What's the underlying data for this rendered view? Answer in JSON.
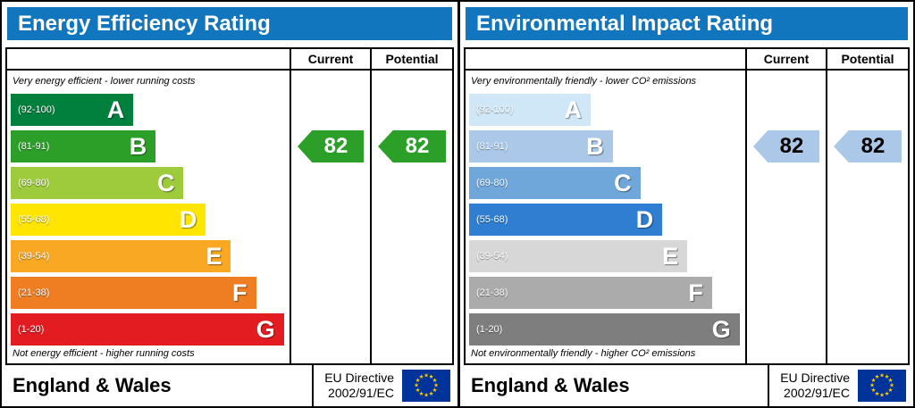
{
  "colors": {
    "header_bg": "#1176bd",
    "header_text": "#ffffff",
    "eu_flag_bg": "#003399",
    "eu_star": "#ffcc00",
    "border": "#000000"
  },
  "panels": [
    {
      "title": "Energy Efficiency Rating",
      "header": {
        "current": "Current",
        "potential": "Potential"
      },
      "top_caption": "Very energy efficient - lower running costs",
      "bottom_caption": "Not energy efficient - higher running costs",
      "bands": [
        {
          "letter": "A",
          "range": "(92-100)",
          "color": "#007f3d",
          "width_pct": 44
        },
        {
          "letter": "B",
          "range": "(81-91)",
          "color": "#2c9f29",
          "width_pct": 52
        },
        {
          "letter": "C",
          "range": "(69-80)",
          "color": "#9dcb3c",
          "width_pct": 62
        },
        {
          "letter": "D",
          "range": "(55-68)",
          "color": "#ffe500",
          "width_pct": 70
        },
        {
          "letter": "E",
          "range": "(39-54)",
          "color": "#f8a823",
          "width_pct": 79
        },
        {
          "letter": "F",
          "range": "(21-38)",
          "color": "#ef7d22",
          "width_pct": 88
        },
        {
          "letter": "G",
          "range": "(1-20)",
          "color": "#e21c21",
          "width_pct": 98
        }
      ],
      "current": {
        "value": "82",
        "band_index": 1,
        "arrow_color": "#2c9f29",
        "text_color": "#ffffff"
      },
      "potential": {
        "value": "82",
        "band_index": 1,
        "arrow_color": "#2c9f29",
        "text_color": "#ffffff"
      },
      "footer": {
        "region": "England & Wales",
        "directive_line1": "EU Directive",
        "directive_line2": "2002/91/EC"
      }
    },
    {
      "title": "Environmental Impact Rating",
      "header": {
        "current": "Current",
        "potential": "Potential"
      },
      "top_caption": "Very environmentally friendly - lower CO² emissions",
      "bottom_caption": "Not environmentally friendly - higher CO² emissions",
      "bands": [
        {
          "letter": "A",
          "range": "(92-100)",
          "color": "#cfe7f6",
          "width_pct": 44
        },
        {
          "letter": "B",
          "range": "(81-91)",
          "color": "#abc8e9",
          "width_pct": 52
        },
        {
          "letter": "C",
          "range": "(69-80)",
          "color": "#70a7db",
          "width_pct": 62
        },
        {
          "letter": "D",
          "range": "(55-68)",
          "color": "#2f7ed1",
          "width_pct": 70
        },
        {
          "letter": "E",
          "range": "(39-54)",
          "color": "#d7d7d7",
          "width_pct": 79
        },
        {
          "letter": "F",
          "range": "(21-38)",
          "color": "#ababab",
          "width_pct": 88
        },
        {
          "letter": "G",
          "range": "(1-20)",
          "color": "#7e7e7e",
          "width_pct": 98
        }
      ],
      "current": {
        "value": "82",
        "band_index": 1,
        "arrow_color": "#abc8e9",
        "text_color": "#000000"
      },
      "potential": {
        "value": "82",
        "band_index": 1,
        "arrow_color": "#abc8e9",
        "text_color": "#000000"
      },
      "footer": {
        "region": "England & Wales",
        "directive_line1": "EU Directive",
        "directive_line2": "2002/91/EC"
      }
    }
  ],
  "chart_data": [
    {
      "type": "bar",
      "title": "Energy Efficiency Rating",
      "categories": [
        "A",
        "B",
        "C",
        "D",
        "E",
        "F",
        "G"
      ],
      "band_ranges": [
        "92-100",
        "81-91",
        "69-80",
        "55-68",
        "39-54",
        "21-38",
        "1-20"
      ],
      "series": [
        {
          "name": "Current",
          "value": 82,
          "band": "B"
        },
        {
          "name": "Potential",
          "value": 82,
          "band": "B"
        }
      ],
      "scale": [
        1,
        100
      ],
      "top_note": "Very energy efficient - lower running costs",
      "bottom_note": "Not energy efficient - higher running costs"
    },
    {
      "type": "bar",
      "title": "Environmental Impact Rating",
      "categories": [
        "A",
        "B",
        "C",
        "D",
        "E",
        "F",
        "G"
      ],
      "band_ranges": [
        "92-100",
        "81-91",
        "69-80",
        "55-68",
        "39-54",
        "21-38",
        "1-20"
      ],
      "series": [
        {
          "name": "Current",
          "value": 82,
          "band": "B"
        },
        {
          "name": "Potential",
          "value": 82,
          "band": "B"
        }
      ],
      "scale": [
        1,
        100
      ],
      "top_note": "Very environmentally friendly - lower CO² emissions",
      "bottom_note": "Not environmentally friendly - higher CO² emissions"
    }
  ]
}
